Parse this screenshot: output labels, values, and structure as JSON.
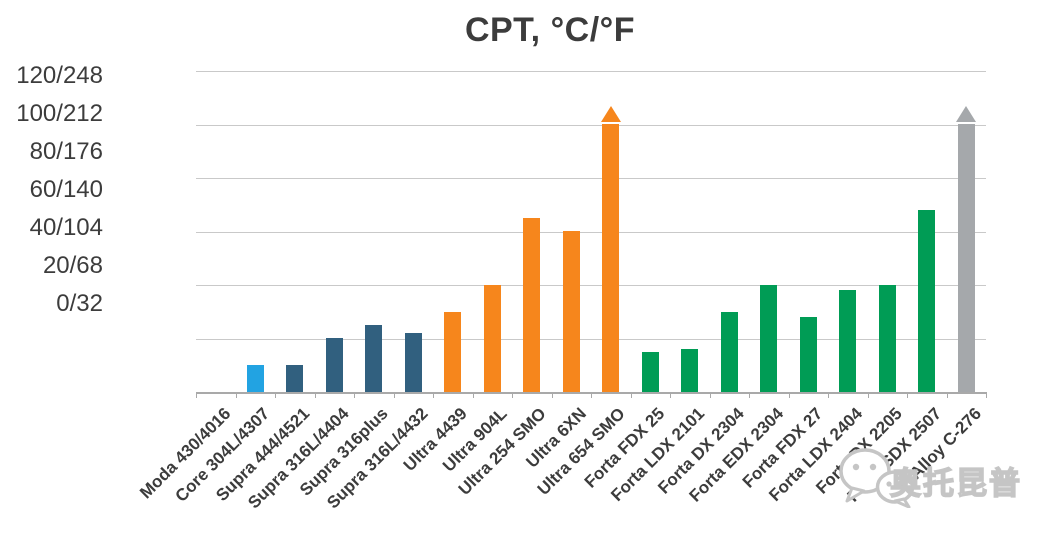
{
  "chart_data": {
    "type": "bar",
    "title": "CPT, °C/°F",
    "y_axis": {
      "tick_labels": [
        "120/248",
        "100/212",
        "80/176",
        "60/140",
        "40/104",
        "20/68",
        "0/32"
      ],
      "unit": "°C/°F",
      "ylim": [
        0,
        120
      ]
    },
    "grid": true,
    "legend": "none",
    "categories": [
      "Moda 430/4016",
      "Core 304L/4307",
      "Supra 444/4521",
      "Supra 316L/4404",
      "Supra 316plus",
      "Supra 316L/4432",
      "Ultra 4439",
      "Ultra 904L",
      "Ultra 254 SMO",
      "Ultra 6XN",
      "Ultra 654 SMO",
      "Forta FDX 25",
      "Forta LDX 2101",
      "Forta DX 2304",
      "Forta EDX 2304",
      "Forta FDX 27",
      "Forta LDX 2404",
      "Forta DX 2205",
      "Forta SDX 2507",
      "Alloy C-276"
    ],
    "values": [
      0,
      10,
      10,
      20,
      25,
      22,
      30,
      40,
      65,
      60,
      100,
      15,
      16,
      30,
      40,
      28,
      38,
      40,
      68,
      100
    ],
    "series_group": [
      "Moda",
      "Core",
      "Supra",
      "Supra",
      "Supra",
      "Supra",
      "Ultra",
      "Ultra",
      "Ultra",
      "Ultra",
      "Ultra",
      "Forta",
      "Forta",
      "Forta",
      "Forta",
      "Forta",
      "Forta",
      "Forta",
      "Forta",
      "Alloy"
    ],
    "exceeds_scale": [
      false,
      false,
      false,
      false,
      false,
      false,
      false,
      false,
      false,
      false,
      true,
      false,
      false,
      false,
      false,
      false,
      false,
      false,
      false,
      true
    ],
    "group_colors": {
      "Moda": "#22A3E2",
      "Core": "#22A3E2",
      "Supra": "#31607F",
      "Ultra": "#F6861C",
      "Forta": "#009C55",
      "Alloy": "#A5A8AB"
    }
  },
  "colors": {
    "title_text": "#3C3C3C",
    "axis_text": "#3C3C3C",
    "gridline": "#C9C9C9",
    "axis_line": "#A9A9A9",
    "watermark": "#C5C5C5"
  },
  "watermark": {
    "icon": "wechat-logo",
    "text": "奥托昆普"
  }
}
